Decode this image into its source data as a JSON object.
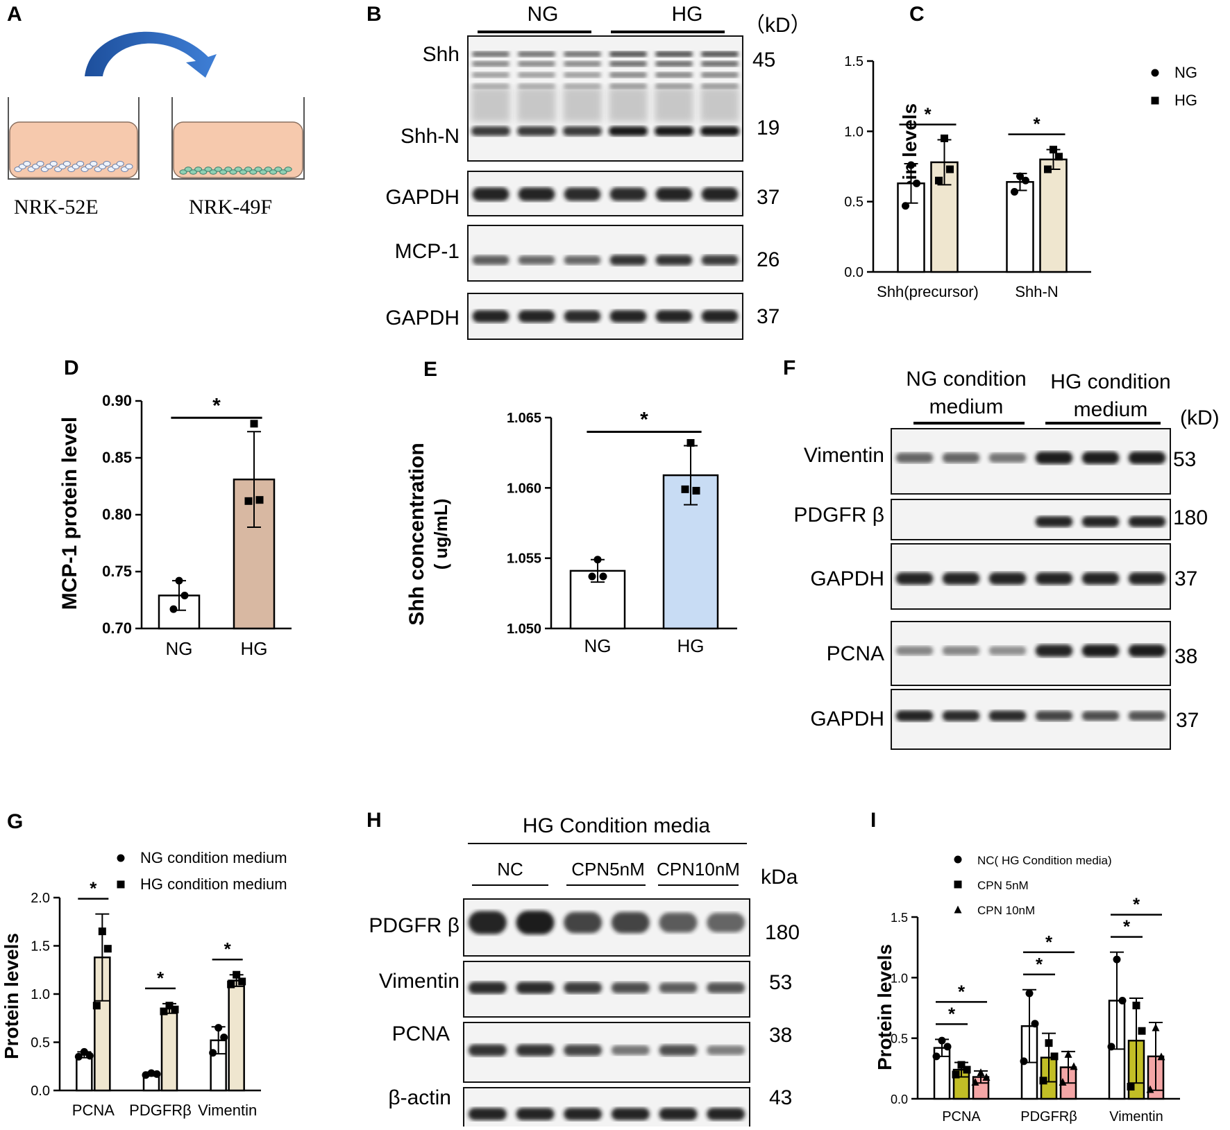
{
  "panels": {
    "A": {
      "letter": "A",
      "left_label": "NRK-52E",
      "right_label": "NRK-49F"
    },
    "B": {
      "letter": "B",
      "groups": [
        "NG",
        "HG"
      ],
      "kd_label": "（kD）",
      "blots": [
        {
          "label": "Shh",
          "kd": "45"
        },
        {
          "label": "Shh-N",
          "kd": "19"
        },
        {
          "label": "GAPDH",
          "kd": "37"
        },
        {
          "label": "MCP-1",
          "kd": "26"
        },
        {
          "label": "GAPDH",
          "kd": "37"
        }
      ]
    },
    "F": {
      "letter": "F",
      "groups": [
        {
          "line1": "NG condition",
          "line2": "medium"
        },
        {
          "line1": "HG  condition",
          "line2": "medium"
        }
      ],
      "kd_label": "(kD)",
      "blots": [
        {
          "label": "Vimentin",
          "kd": "53"
        },
        {
          "label": "PDGFR β",
          "kd": "180"
        },
        {
          "label": "GAPDH",
          "kd": "37"
        },
        {
          "label": "PCNA",
          "kd": "38"
        },
        {
          "label": "GAPDH",
          "kd": "37"
        }
      ]
    },
    "H": {
      "letter": "H",
      "title": "HG Condition media",
      "groups": [
        "NC",
        "CPN5nM",
        "CPN10nM"
      ],
      "kd_label": "kDa",
      "blots": [
        {
          "label": "PDGFR β",
          "kd": "180"
        },
        {
          "label": "Vimentin",
          "kd": "53"
        },
        {
          "label": "PCNA",
          "kd": "38"
        },
        {
          "label": "β-actin",
          "kd": "43"
        }
      ]
    }
  },
  "chart_data": [
    {
      "id": "C",
      "type": "bar",
      "letter": "C",
      "ylabel": "Protein levels",
      "ylim": [
        0,
        1.5
      ],
      "yticks": [
        "0.0",
        "0.5",
        "1.0",
        "1.5"
      ],
      "categories": [
        "Shh(precursor)",
        "Shh-N"
      ],
      "legend": [
        "NG",
        "HG"
      ],
      "colors": [
        "#ffffff",
        "#efe6cf"
      ],
      "series": [
        {
          "name": "NG",
          "values": [
            0.63,
            0.64
          ],
          "err": [
            0.14,
            0.06
          ],
          "points": [
            [
              0.76,
              0.63,
              0.47
            ],
            [
              0.68,
              0.65,
              0.57
            ]
          ]
        },
        {
          "name": "HG",
          "values": [
            0.78,
            0.8
          ],
          "err": [
            0.16,
            0.07
          ],
          "points": [
            [
              0.95,
              0.73,
              0.65
            ],
            [
              0.87,
              0.82,
              0.73
            ]
          ]
        }
      ],
      "sig": [
        {
          "cat": 0,
          "text": "*"
        },
        {
          "cat": 1,
          "text": "*"
        }
      ]
    },
    {
      "id": "D",
      "type": "bar",
      "letter": "D",
      "ylabel": "MCP-1 protein level",
      "ylim": [
        0.7,
        0.9
      ],
      "yticks": [
        "0.70",
        "0.75",
        "0.80",
        "0.85",
        "0.90"
      ],
      "categories": [
        "NG",
        "HG"
      ],
      "colors": [
        "#ffffff",
        "#d8b8a2"
      ],
      "values": [
        0.729,
        0.831
      ],
      "err": [
        0.013,
        0.042
      ],
      "points": [
        [
          0.742,
          0.729,
          0.717
        ],
        [
          0.88,
          0.813,
          0.812
        ]
      ],
      "sig": "*"
    },
    {
      "id": "E",
      "type": "bar",
      "letter": "E",
      "ylabel": "Shh concentration",
      "ylabel2": "( ug/mL)",
      "ylim": [
        1.05,
        1.065
      ],
      "yticks": [
        "1.050",
        "1.055",
        "1.060",
        "1.065"
      ],
      "categories": [
        "NG",
        "HG"
      ],
      "colors": [
        "#ffffff",
        "#c8dcf4"
      ],
      "values": [
        1.0541,
        1.0609
      ],
      "err": [
        0.0008,
        0.0021
      ],
      "points": [
        [
          1.0549,
          1.0537,
          1.0537
        ],
        [
          1.0632,
          1.0598,
          1.0599
        ]
      ],
      "sig": "*"
    },
    {
      "id": "G",
      "type": "bar",
      "letter": "G",
      "ylabel": "Protein levels",
      "ylim": [
        0,
        2.0
      ],
      "yticks": [
        "0.0",
        "0.5",
        "1.0",
        "1.5",
        "2.0"
      ],
      "categories": [
        "PCNA",
        "PDGFRβ",
        "Vimentin"
      ],
      "legend": [
        "NG condition medium",
        "HG condition medium"
      ],
      "colors": [
        "#ffffff",
        "#efe6cf"
      ],
      "series": [
        {
          "name": "NG condition medium",
          "values": [
            0.37,
            0.17,
            0.52
          ],
          "err": [
            0.03,
            0.02,
            0.14
          ],
          "points": [
            [
              0.4,
              0.36,
              0.35
            ],
            [
              0.18,
              0.17,
              0.16
            ],
            [
              0.65,
              0.55,
              0.39
            ]
          ]
        },
        {
          "name": "HG condition medium",
          "values": [
            1.38,
            0.85,
            1.14
          ],
          "err": [
            0.45,
            0.05,
            0.06
          ],
          "points": [
            [
              1.65,
              1.47,
              0.88
            ],
            [
              0.88,
              0.84,
              0.82
            ],
            [
              1.2,
              1.13,
              1.1
            ]
          ]
        }
      ],
      "sig": [
        {
          "cat": 0,
          "text": "*"
        },
        {
          "cat": 1,
          "text": "*"
        },
        {
          "cat": 2,
          "text": "*"
        }
      ]
    },
    {
      "id": "I",
      "type": "bar",
      "letter": "I",
      "ylabel": "Protein levels",
      "ylim": [
        0,
        1.5
      ],
      "yticks": [
        "0.0",
        "0.5",
        "1.0",
        "1.5"
      ],
      "categories": [
        "PCNA",
        "PDGFRβ",
        "Vimentin"
      ],
      "legend": [
        "NC( HG Condition media)",
        "CPN 5nM",
        "CPN 10nM"
      ],
      "colors": [
        "#ffffff",
        "#c2be26",
        "#f4a6a6"
      ],
      "series": [
        {
          "name": "NC( HG Condition media)",
          "values": [
            0.42,
            0.6,
            0.81
          ],
          "err": [
            0.07,
            0.3,
            0.4
          ],
          "points": [
            [
              0.48,
              0.43,
              0.35
            ],
            [
              0.87,
              0.62,
              0.31
            ],
            [
              1.15,
              0.81,
              0.43
            ]
          ]
        },
        {
          "name": "CPN 5nM",
          "values": [
            0.24,
            0.34,
            0.48
          ],
          "err": [
            0.06,
            0.2,
            0.35
          ],
          "points": [
            [
              0.28,
              0.24,
              0.2
            ],
            [
              0.46,
              0.35,
              0.15
            ],
            [
              0.77,
              0.56,
              0.1
            ]
          ]
        },
        {
          "name": "CPN 10nM",
          "values": [
            0.18,
            0.26,
            0.35
          ],
          "err": [
            0.05,
            0.13,
            0.28
          ],
          "points": [
            [
              0.22,
              0.18,
              0.14
            ],
            [
              0.37,
              0.27,
              0.14
            ],
            [
              0.59,
              0.35,
              0.08
            ]
          ]
        }
      ],
      "sig": [
        {
          "cat": 0,
          "pair": [
            0,
            1
          ],
          "text": "*"
        },
        {
          "cat": 0,
          "pair": [
            0,
            2
          ],
          "text": "*"
        },
        {
          "cat": 1,
          "pair": [
            0,
            1
          ],
          "text": "*"
        },
        {
          "cat": 1,
          "pair": [
            0,
            2
          ],
          "text": "*"
        },
        {
          "cat": 2,
          "pair": [
            0,
            1
          ],
          "text": "*"
        },
        {
          "cat": 2,
          "pair": [
            0,
            2
          ],
          "text": "*"
        }
      ]
    }
  ]
}
